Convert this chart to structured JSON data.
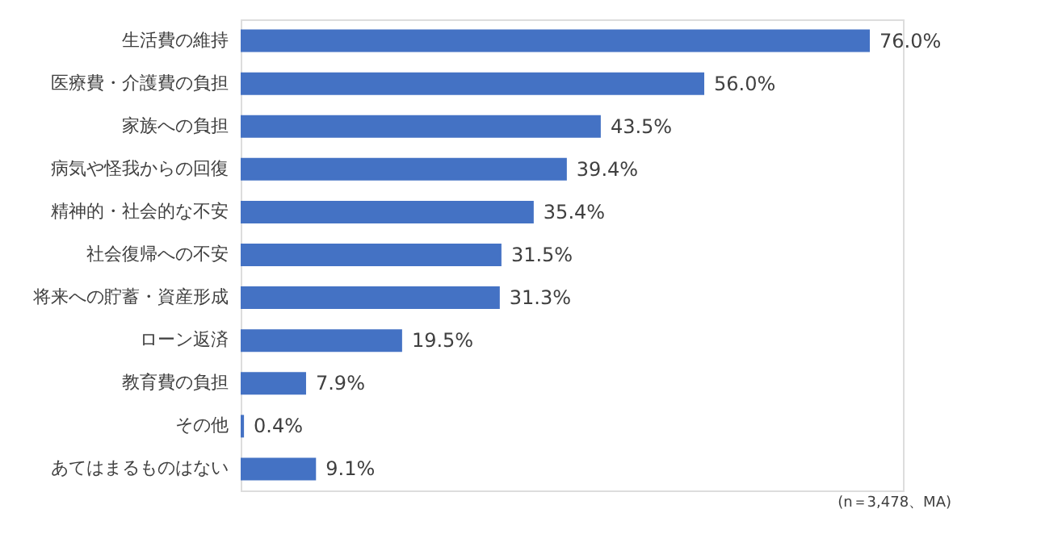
{
  "chart_data": {
    "type": "bar",
    "orientation": "horizontal",
    "categories": [
      "生活費の維持",
      "医療費・介護費の負担",
      "家族への負担",
      "病気や怪我からの回復",
      "精神的・社会的な不安",
      "社会復帰への不安",
      "将来への貯蓄・資産形成",
      "ローン返済",
      "教育費の負担",
      "その他",
      "あてはまるものはない"
    ],
    "values": [
      76.0,
      56.0,
      43.5,
      39.4,
      35.4,
      31.5,
      31.3,
      19.5,
      7.9,
      0.4,
      9.1
    ],
    "value_labels": [
      "76.0%",
      "56.0%",
      "43.5%",
      "39.4%",
      "35.4%",
      "31.5%",
      "31.3%",
      "19.5%",
      "7.9%",
      "0.4%",
      "9.1%"
    ],
    "color": "#4472c4",
    "annotations": [
      "(n＝3,478、MA)"
    ],
    "grid": false
  }
}
